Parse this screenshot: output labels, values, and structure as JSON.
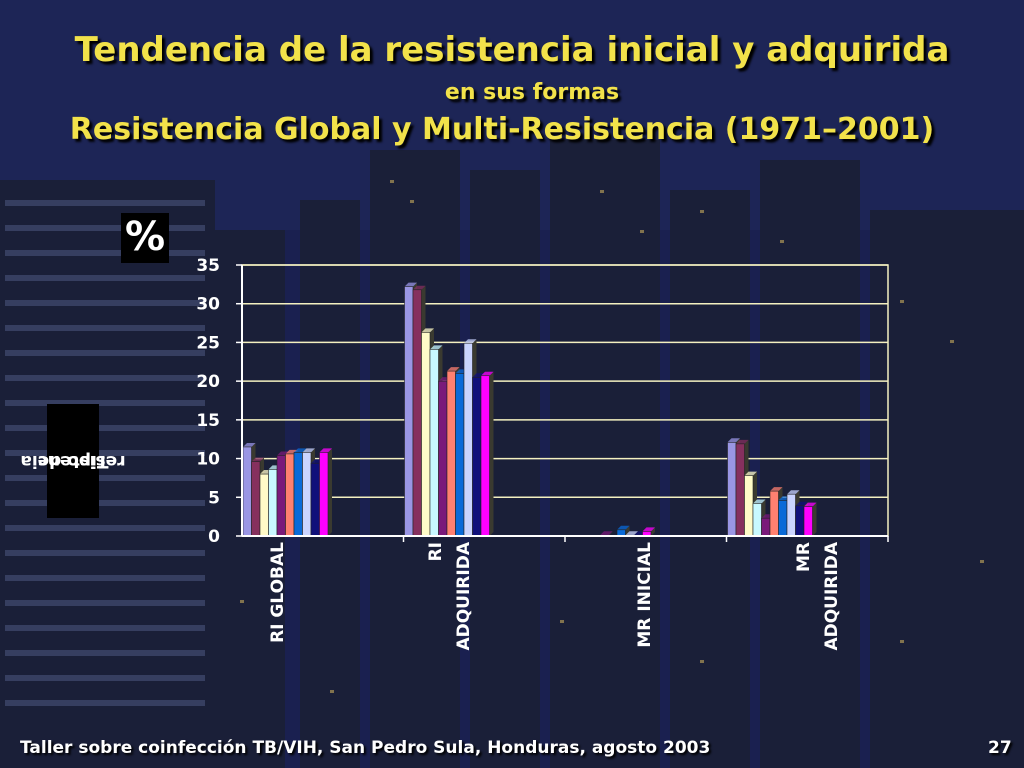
{
  "slide": {
    "title_line1": "Tendencia de la resistencia inicial y adquirida",
    "title_line2": "en sus formas",
    "title_line3": "Resistencia Global y Multi-Resistencia (1971–2001)",
    "unit_label": "%",
    "ylabel_line1": "Tipo de",
    "ylabel_line2": "resistencia",
    "footer": "Taller sobre coinfección TB/VIH, San Pedro Sula, Honduras, agosto 2003",
    "page_number": "27"
  },
  "chart_data": {
    "type": "bar",
    "categories": [
      "RI GLOBAL",
      "RI ADQUIRIDA",
      "MR INICIAL",
      "MR ADQUIRIDA"
    ],
    "category_lines": [
      [
        "RI GLOBAL"
      ],
      [
        "RI",
        "ADQUIRIDA"
      ],
      [
        "MR INICIAL"
      ],
      [
        "MR",
        "ADQUIRIDA"
      ]
    ],
    "ylim": [
      0,
      35
    ],
    "yticks": [
      0,
      5,
      10,
      15,
      20,
      25,
      30,
      35
    ],
    "grid": true,
    "legend": "none",
    "series_colors": [
      "#9a96e4",
      "#86305e",
      "#fffbc8",
      "#c8f8ff",
      "#7a1a7a",
      "#ff8070",
      "#0a6ad8",
      "#cad4ff",
      "#10107a",
      "#ff00ff",
      "#8c8c58"
    ],
    "series": [
      {
        "values": [
          11.5,
          32.2,
          0.0,
          12.1
        ]
      },
      {
        "values": [
          9.6,
          31.8,
          0.0,
          11.9
        ]
      },
      {
        "values": [
          8.0,
          26.3,
          0.0,
          7.8
        ]
      },
      {
        "values": [
          8.6,
          24.1,
          0.0,
          4.2
        ]
      },
      {
        "values": [
          10.4,
          20.0,
          0.1,
          2.3
        ]
      },
      {
        "values": [
          10.6,
          21.3,
          0.0,
          5.8
        ]
      },
      {
        "values": [
          10.8,
          21.0,
          0.8,
          4.6
        ]
      },
      {
        "values": [
          10.8,
          24.9,
          0.1,
          5.4
        ]
      },
      {
        "values": [
          9.4,
          20.5,
          0.1,
          3.9
        ]
      },
      {
        "values": [
          10.8,
          20.7,
          0.6,
          3.8
        ]
      }
    ]
  }
}
